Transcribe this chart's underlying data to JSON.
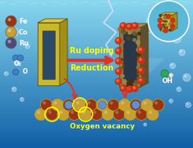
{
  "text_ru_doping": "Ru doping",
  "text_reduction": "Reduction",
  "text_oxygen_vacancy": "Oxygen vacancy",
  "text_oh": "OH",
  "text_o2": "O₂",
  "text_o": "O",
  "label_fe": "Fe",
  "label_co": "Co",
  "label_ru": "Ru",
  "arrow_color": "#e83020",
  "text_color_yellow": "#ffff00",
  "text_color_white": "#ffffff",
  "bg_top": "#8ad8f0",
  "bg_bottom": "#1060a8",
  "mof_face": "#c8b830",
  "mof_side": "#a09018",
  "mof_top": "#dcc840",
  "rod2_face": "#887850",
  "rod2_side": "#605030",
  "rod2_top": "#a09060",
  "hole_color": "#2a4a6a",
  "sphere_fe": "#993310",
  "sphere_co": "#c8a030",
  "sphere_ru": "#504878",
  "sphere_blue": "#4080c0",
  "sphere_green": "#30a850",
  "sphere_white": "#d8e8f0",
  "vacancy_color": "#ffff00",
  "bubble_color": "#aaddff"
}
